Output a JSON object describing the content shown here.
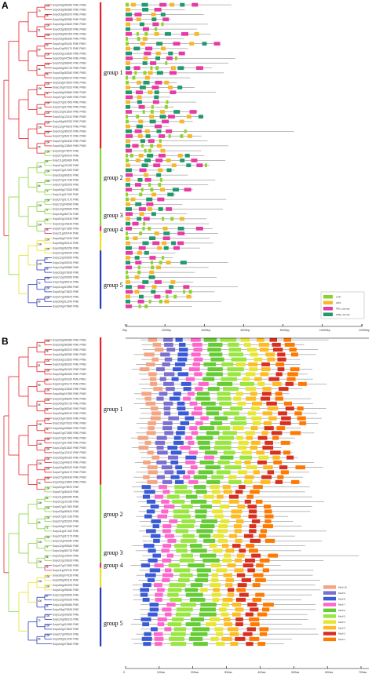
{
  "panels": {
    "a": {
      "letter": "A"
    },
    "b": {
      "letter": "B"
    }
  },
  "groups": [
    "group 1",
    "group 2",
    "group 3",
    "group 4",
    "group 5"
  ],
  "colors": {
    "group1": "#e8202a",
    "group2": "#8bd63a",
    "group3": "#e0307f",
    "group4": "#e8e020",
    "group5": "#2a3bc2",
    "utr": "#8ed32b",
    "cds": "#f5b82a",
    "pro_domain": "#e83aa6",
    "pme_domain": "#1f9a6d"
  },
  "axisA": {
    "ticks": [
      "0bp",
      "2000bp",
      "4000bp",
      "6000bp",
      "8000bp",
      "10000bp",
      "12000bp"
    ],
    "start": "5'",
    "end": "3'"
  },
  "axisB": {
    "ticks": [
      "0",
      "100aa",
      "200aa",
      "300aa",
      "400aa",
      "500aa",
      "600aa",
      "700aa"
    ]
  },
  "legendA": [
    "UTR",
    "CDS",
    "PRO_domain",
    "PME_domain"
  ],
  "legendB": [
    "Motif 10",
    "Motif 9",
    "Motif 8",
    "Motif 7",
    "Motif 6",
    "Motif 5",
    "Motif 4",
    "Motif 3",
    "Motif 2",
    "Motif 1"
  ],
  "genesA": [
    "Solyc03g083360 PME PMEI",
    "Solyc03g083380 PME PMEI",
    "Solyc03g083370 PME PMEI",
    "Solyc03g083350 PME PMEI",
    "Solyc03g123620 PME PMEI",
    "Solyc03g083320 PME PMEI",
    "Solyc05g051000 PME PMEI",
    "Solyc03g083330 PME PMEI",
    "Solyc01g091160 PME PMEI",
    "Solyc01g091170 PME PMEI",
    "Solyc03g123630 PME PMEI",
    "Solyc05g047590 PME PMEI",
    "Solyc02g068340 PME PMEI",
    "Solyc09g091730 PME PMEI",
    "Solyc03g083340 PME PMEI",
    "Solyc02g080210 PME PMEI",
    "Solyc03g078200 PME PMEI",
    "Solyc10g076310 PME PMEI",
    "Solyc06g009660 PME PMEI",
    "Solyc07g071890 PME PMEI",
    "Solyc07g017600 PME PMEI",
    "Solyc07g017590 PME PMEI",
    "Solyc12g013620 PME PMEI",
    "Solyc02g122410 PME PMEI",
    "Solyc06g062320 PME PMEI",
    "Solyc12g049100 PME PMEI",
    "Solyc02g080220 PME PMEI",
    "Solyc07g064170 PME PMEI",
    "Solyc07g064180 PME PMEI",
    "Solyc03g123600 PME PMEI",
    "Solyc02g078570 PME",
    "Solyc07g064100 PME",
    "Solyc11g062480 PME",
    "Solyc01g101030 PME",
    "Solyc07g017600 PME",
    "Solyc03g083610 PME",
    "Solyc07g017180 PME",
    "Solyc07g052200 PME",
    "Solyc09g075330 PME",
    "Solyc11g017160 PME",
    "Solyc07g017170 PME",
    "Solyc12g049340 PME",
    "Solyc12g098340 PME",
    "Solyc10g082730 PME",
    "Solyc02g103440 PME",
    "Solyc01g106160 PME",
    "Solyc07g071890 PME",
    "Solyc11g009740 PME",
    "Solyc06g074230 PME",
    "Solyc05g052110 PME",
    "Solyc06g062290 PME",
    "Solyc01g096040 PME",
    "Solyc12g005250 PME",
    "Solyc12g009230 PME",
    "Solyc12g098380 PME",
    "Solyc03g078180 PME",
    "Solyc12g005260 PME",
    "Solyc10g080210 PME",
    "Solyc01g010990 PME",
    "Solyc02g075620 PME",
    "Solyc07g005100 PME",
    "Solyc05g012240 PME",
    "Solyc04g079840 PME"
  ],
  "genesB": [
    "Solyc03g083360 PME PMEI",
    "Solyc03g083380 PME PMEI",
    "Solyc03g083370 PME PMEI",
    "Solyc03g083350 PME PMEI",
    "Solyc03g123620 PME PMEI",
    "Solyc03g083320 PME PMEI",
    "Solyc05g051000 PME PMEI",
    "Solyc03g083330 PME PMEI",
    "Solyc01g091160 PME PMEI",
    "Solyc01g091170 PME PMEI",
    "Solyc03g123630 PME PMEI",
    "Solyc05g047590 PME PMEI",
    "Solyc02g068340 PME PMEI",
    "Solyc09g091730 PME PMEI",
    "Solyc03g083340 PME PMEI",
    "Solyc02g080210 PME PMEI",
    "Solyc03g078200 PME PMEI",
    "Solyc10g076310 PME PMEI",
    "Solyc06g009660 PME PMEI",
    "Solyc07g071890 PME PMEI",
    "Solyc07g017600 PME PMEI",
    "Solyc07g017590 PME PMEI",
    "Solyc12g013620 PME PMEI",
    "Solyc02g122410 PME PMEI",
    "Solyc06g062320 PME PMEI",
    "Solyc12g049100 PME PMEI",
    "Solyc02g080220 PME PMEI",
    "Solyc07g064170 PME PMEI",
    "Solyc07g064180 PME PMEI",
    "Solyc03g123600 PME PMEI",
    "Solyc02g078570 PME",
    "Solyc07g064100 PME",
    "Solyc11g062480 PME",
    "Solyc01g101030 PME",
    "Solyc07g017600 PME",
    "Solyc03g083610 PME",
    "Solyc07g017180 PME",
    "Solyc07g052200 PME",
    "Solyc09g075330 PME",
    "Solyc11g017160 PME",
    "Solyc07g017170 PME",
    "Solyc12g049340 PME",
    "Solyc12g098340 PME",
    "Solyc10g082730 PME",
    "Solyc02g103440 PME",
    "Solyc01g106160 PME",
    "Solyc07g071890 PME",
    "Solyc11g009740 PME",
    "Solyc06g074230 PME",
    "Solyc05g052110 PME",
    "Solyc06g062290 PME",
    "Solyc01g096040 PME",
    "Solyc12g005250 PME",
    "Solyc12g009230 PME",
    "Solyc12g098380 PME",
    "Solyc03g078180 PME",
    "Solyc12g005260 PME",
    "Solyc10g080210 PME",
    "Solyc01g010990 PME",
    "Solyc02g075620 PME",
    "Solyc07g005100 PME",
    "Solyc05g012240 PME",
    "Solyc04g079840 PME"
  ],
  "bootstrapA": [
    "100",
    "58",
    "100",
    "100",
    "99",
    "100",
    "100",
    "56",
    "100",
    "74",
    "100",
    "100",
    "100",
    "100",
    "100",
    "100",
    "64",
    "100",
    "100",
    "72",
    "100",
    "77",
    "96",
    "95",
    "100",
    "100",
    "57",
    "66",
    "100",
    "100",
    "100",
    "70",
    "51",
    "99",
    "44",
    "100",
    "100",
    "100",
    "99",
    "100",
    "64",
    "100",
    "100",
    "100",
    "100",
    "72",
    "96"
  ],
  "bootstrapB": [
    "100",
    "58",
    "100",
    "100",
    "99",
    "100",
    "100",
    "56",
    "100",
    "74",
    "100",
    "100",
    "100",
    "100",
    "100",
    "100",
    "64",
    "100",
    "100",
    "72",
    "100",
    "77",
    "96",
    "95",
    "100",
    "100",
    "57",
    "66",
    "100",
    "100",
    "100",
    "70",
    "51",
    "99",
    "44",
    "100",
    "100",
    "100",
    "99",
    "100",
    "64",
    "100",
    "100",
    "100",
    "100",
    "72",
    "96"
  ]
}
